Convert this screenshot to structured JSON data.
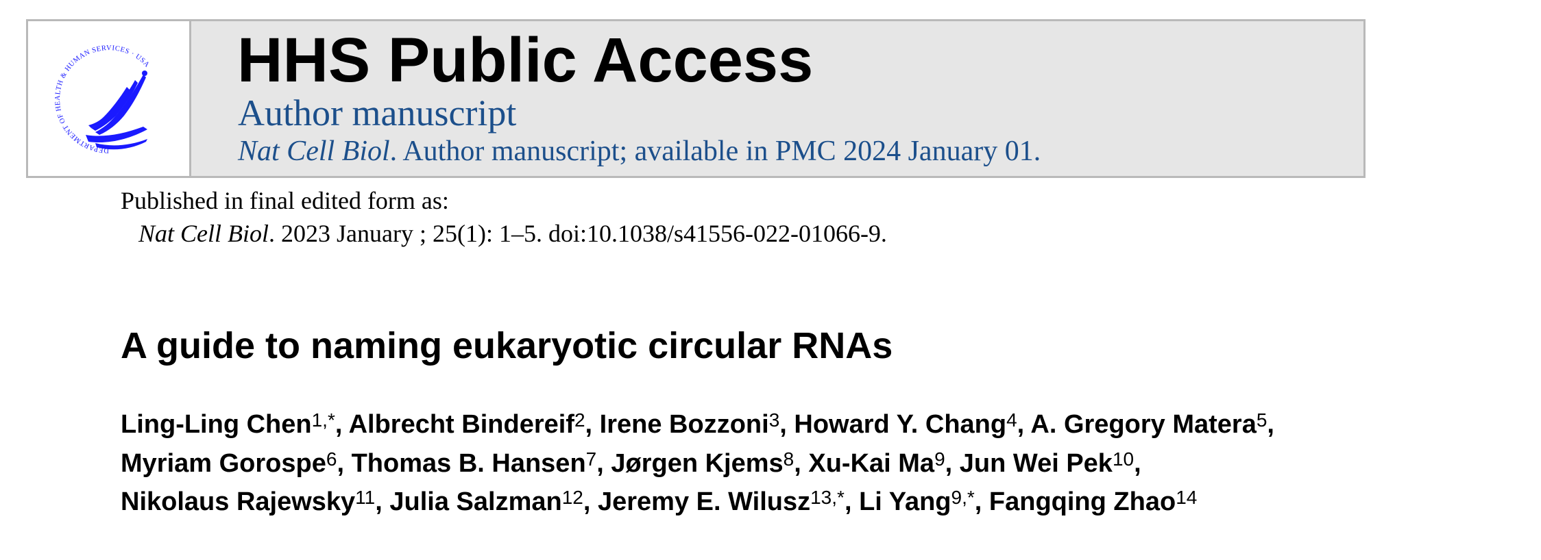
{
  "banner": {
    "title": "HHS Public Access",
    "subtitle": "Author manuscript",
    "journal": "Nat Cell Biol",
    "availability": ". Author manuscript; available in PMC 2024 January 01.",
    "logo_text": "DEPARTMENT OF HEALTH & HUMAN SERVICES · USA",
    "brand_color": "#1c4f8b",
    "logo_color": "#1a1aff"
  },
  "publication": {
    "label": "Published in final edited form as:",
    "journal": "Nat Cell Biol",
    "citation": ". 2023 January ; 25(1): 1–5. doi:10.1038/s41556-022-01066-9."
  },
  "article": {
    "title": "A guide to naming eukaryotic circular RNAs"
  },
  "authors": [
    {
      "name": "Ling-Ling Chen",
      "aff": "1,*"
    },
    {
      "name": "Albrecht Bindereif",
      "aff": "2"
    },
    {
      "name": "Irene Bozzoni",
      "aff": "3"
    },
    {
      "name": "Howard Y. Chang",
      "aff": "4"
    },
    {
      "name": "A. Gregory Matera",
      "aff": "5"
    },
    {
      "name": "Myriam Gorospe",
      "aff": "6"
    },
    {
      "name": "Thomas B. Hansen",
      "aff": "7"
    },
    {
      "name": "Jørgen Kjems",
      "aff": "8"
    },
    {
      "name": "Xu-Kai Ma",
      "aff": "9"
    },
    {
      "name": "Jun Wei Pek",
      "aff": "10"
    },
    {
      "name": "Nikolaus Rajewsky",
      "aff": "11"
    },
    {
      "name": "Julia Salzman",
      "aff": "12"
    },
    {
      "name": "Jeremy E. Wilusz",
      "aff": "13,*"
    },
    {
      "name": "Li Yang",
      "aff": "9,*"
    },
    {
      "name": "Fangqing Zhao",
      "aff": "14"
    }
  ]
}
